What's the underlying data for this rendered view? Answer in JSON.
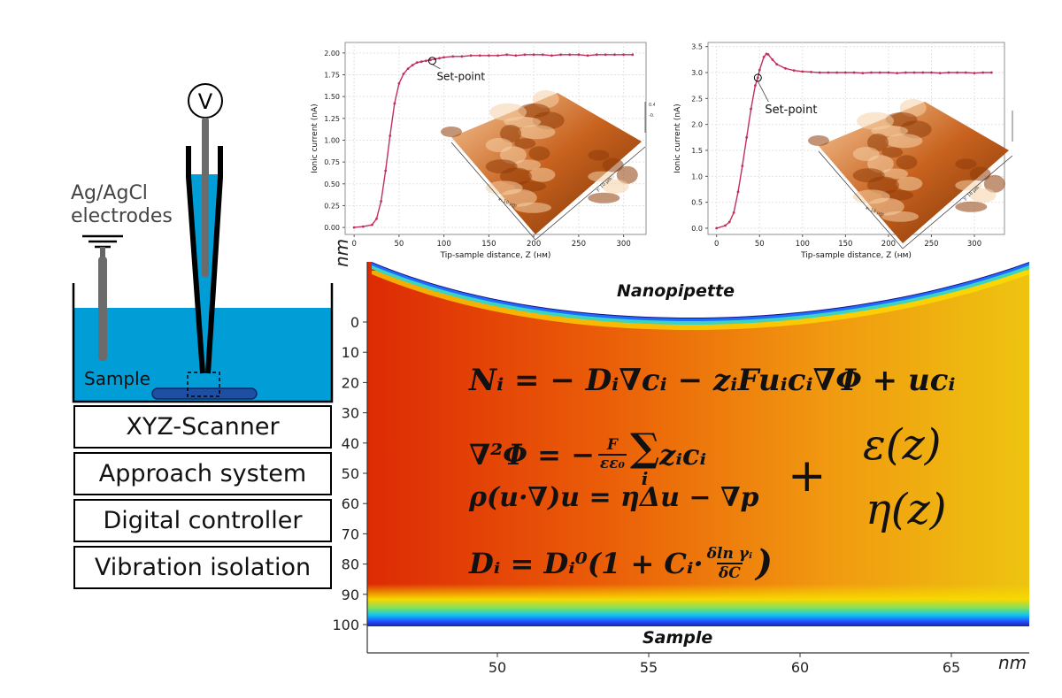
{
  "setup": {
    "electrodes_label_line1": "Ag/AgCl",
    "electrodes_label_line2": "electrodes",
    "voltmeter_label": "V",
    "sample_label": "Sample"
  },
  "stack": [
    "XYZ-Scanner",
    "Approach system",
    "Digital controller",
    "Vibration isolation"
  ],
  "plots": [
    {
      "type": "line",
      "xlabel": "Tip-sample distance, Z (нм)",
      "ylabel": "Ionic current (nA)",
      "xticks": [
        0,
        50,
        100,
        150,
        200,
        250,
        300
      ],
      "yticks": [
        "0.00",
        "0.25",
        "0.50",
        "0.75",
        "1.00",
        "1.25",
        "1.50",
        "1.75",
        "2.00"
      ],
      "xlim": [
        -10,
        325
      ],
      "ylim": [
        -0.08,
        2.12
      ],
      "annotation": "Set-point",
      "setpoint": {
        "x": 87,
        "y": 1.91
      },
      "inset_scale_top": "0.43 μm",
      "inset_scale_bottom": "-0.00 μm",
      "inset_x_label": "x: 10 μm",
      "inset_y_label": "y: 10 μm",
      "x": [
        0,
        10,
        20,
        25,
        30,
        35,
        40,
        45,
        50,
        55,
        60,
        65,
        70,
        75,
        80,
        85,
        90,
        95,
        100,
        110,
        120,
        130,
        140,
        150,
        160,
        170,
        180,
        190,
        200,
        210,
        220,
        230,
        240,
        250,
        260,
        270,
        280,
        290,
        300,
        310
      ],
      "y": [
        0.0,
        0.01,
        0.03,
        0.1,
        0.3,
        0.65,
        1.05,
        1.42,
        1.65,
        1.76,
        1.82,
        1.86,
        1.89,
        1.9,
        1.91,
        1.92,
        1.93,
        1.94,
        1.95,
        1.96,
        1.96,
        1.97,
        1.97,
        1.97,
        1.97,
        1.98,
        1.97,
        1.98,
        1.98,
        1.98,
        1.97,
        1.98,
        1.98,
        1.98,
        1.97,
        1.98,
        1.98,
        1.98,
        1.98,
        1.98
      ]
    },
    {
      "type": "line",
      "xlabel": "Tip-sample distance, Z (нм)",
      "ylabel": "Ionic current (nA)",
      "xticks": [
        0,
        50,
        100,
        150,
        200,
        250,
        300
      ],
      "yticks": [
        "0.0",
        "0.5",
        "1.0",
        "1.5",
        "2.0",
        "2.5",
        "3.0",
        "3.5"
      ],
      "xlim": [
        -10,
        335
      ],
      "ylim": [
        -0.12,
        3.58
      ],
      "annotation": "Set-point",
      "setpoint": {
        "x": 48,
        "y": 2.9
      },
      "inset_scale_top": "0.59 μm",
      "inset_scale_bottom": "0.00 μm",
      "inset_x_label": "x: 16 μm",
      "inset_y_label": "y: 16 μm",
      "x": [
        0,
        10,
        15,
        20,
        25,
        30,
        35,
        40,
        45,
        48,
        50,
        55,
        58,
        60,
        65,
        70,
        80,
        90,
        100,
        110,
        120,
        130,
        140,
        150,
        160,
        170,
        180,
        190,
        200,
        210,
        220,
        230,
        240,
        250,
        260,
        270,
        280,
        290,
        300,
        310,
        320
      ],
      "y": [
        0.0,
        0.05,
        0.12,
        0.3,
        0.7,
        1.2,
        1.75,
        2.3,
        2.75,
        2.9,
        3.05,
        3.3,
        3.36,
        3.35,
        3.25,
        3.16,
        3.08,
        3.04,
        3.02,
        3.01,
        3.0,
        3.0,
        3.0,
        3.0,
        3.0,
        2.99,
        3.0,
        3.0,
        3.0,
        2.99,
        3.0,
        3.0,
        3.0,
        3.0,
        2.99,
        3.0,
        3.0,
        3.0,
        2.99,
        3.0,
        3.0
      ]
    }
  ],
  "sim": {
    "nm_label_left": "nm",
    "nm_label_bottom": "nm",
    "yticks": [
      "0",
      "10",
      "20",
      "30",
      "40",
      "50",
      "60",
      "70",
      "80",
      "90",
      "100"
    ],
    "xticks": [
      "50",
      "55",
      "60",
      "65"
    ],
    "nanopipette_label": "Nanopipette",
    "sample_label": "Sample"
  },
  "equations": {
    "eq1": "Nᵢ = − Dᵢ∇cᵢ − zᵢFuᵢcᵢ∇Φ + ucᵢ",
    "eq2_left": "∇²Φ = −",
    "eq2_num": "F",
    "eq2_den": "εε₀",
    "eq2_sum": "∑",
    "eq2_sub": "i",
    "eq2_right": "zᵢcᵢ",
    "eq3": "ρ(u·∇)u = ηΔu − ∇p",
    "eq4_left": "Dᵢ = Dᵢ⁰(1 + Cᵢ·",
    "eq4_num": "δln γᵢ",
    "eq4_den": "δC",
    "eq4_right": ")",
    "plus": "+",
    "eps": "ε(z)",
    "eta": "η(z)"
  }
}
